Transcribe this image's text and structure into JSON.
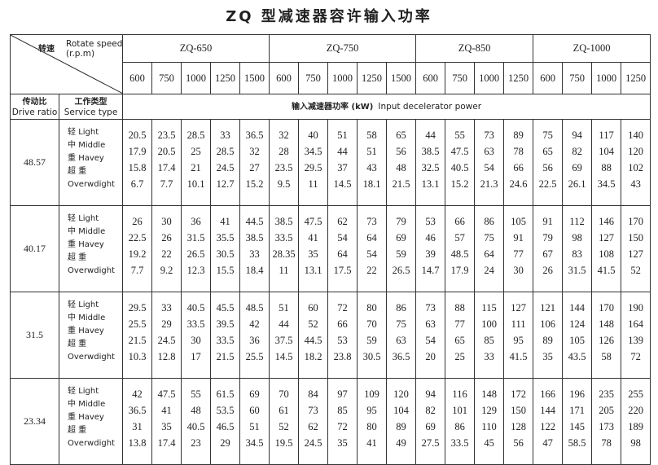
{
  "title": "ZQ 型减速器容许输入功率",
  "header": {
    "speed_label_zh": "转速",
    "speed_label_en": "Rotate speed (r.p.m)",
    "ratio_label_zh": "传动比",
    "ratio_label_en": "Drive ratio",
    "service_label_zh": "工作类型",
    "service_label_en": "Service type",
    "power_label_zh": "输入减速器功率 (kW)",
    "power_label_en": "Input decelerator power"
  },
  "groups": [
    {
      "name": "ZQ-650",
      "speeds": [
        600,
        750,
        1000,
        1250,
        1500
      ]
    },
    {
      "name": "ZQ-750",
      "speeds": [
        600,
        750,
        1000,
        1250,
        1500
      ]
    },
    {
      "name": "ZQ-850",
      "speeds": [
        600,
        750,
        1000,
        1250
      ]
    },
    {
      "name": "ZQ-1000",
      "speeds": [
        600,
        750,
        1000,
        1250
      ]
    }
  ],
  "service_types": [
    {
      "zh": "轻",
      "en": "Light"
    },
    {
      "zh": "中",
      "en": "Middle"
    },
    {
      "zh": "重",
      "en": "Havey"
    },
    {
      "zh": "超 重",
      "en": "Overwdight"
    }
  ],
  "blocks": [
    {
      "ratio": "48.57",
      "rows": [
        [
          "20.5",
          "23.5",
          "28.5",
          "33",
          "36.5",
          "32",
          "40",
          "51",
          "58",
          "65",
          "44",
          "55",
          "73",
          "89",
          "75",
          "94",
          "117",
          "140"
        ],
        [
          "17.9",
          "20.5",
          "25",
          "28.5",
          "32",
          "28",
          "34.5",
          "44",
          "51",
          "56",
          "38.5",
          "47.5",
          "63",
          "78",
          "65",
          "82",
          "104",
          "120"
        ],
        [
          "15.8",
          "17.4",
          "21",
          "24.5",
          "27",
          "23.5",
          "29.5",
          "37",
          "43",
          "48",
          "32.5",
          "40.5",
          "54",
          "66",
          "56",
          "69",
          "88",
          "102"
        ],
        [
          "6.7",
          "7.7",
          "10.1",
          "12.7",
          "15.2",
          "9.5",
          "11",
          "14.5",
          "18.1",
          "21.5",
          "13.1",
          "15.2",
          "21.3",
          "24.6",
          "22.5",
          "26.1",
          "34.5",
          "43"
        ]
      ]
    },
    {
      "ratio": "40.17",
      "rows": [
        [
          "26",
          "30",
          "36",
          "41",
          "44.5",
          "38.5",
          "47.5",
          "62",
          "73",
          "79",
          "53",
          "66",
          "86",
          "105",
          "91",
          "112",
          "146",
          "170"
        ],
        [
          "22.5",
          "26",
          "31.5",
          "35.5",
          "38.5",
          "33.5",
          "41",
          "54",
          "64",
          "69",
          "46",
          "57",
          "75",
          "91",
          "79",
          "98",
          "127",
          "150"
        ],
        [
          "19.2",
          "22",
          "26.5",
          "30.5",
          "33",
          "28.35",
          "35",
          "64",
          "54",
          "59",
          "39",
          "48.5",
          "64",
          "77",
          "67",
          "83",
          "108",
          "127"
        ],
        [
          "7.7",
          "9.2",
          "12.3",
          "15.5",
          "18.4",
          "11",
          "13.1",
          "17.5",
          "22",
          "26.5",
          "14.7",
          "17.9",
          "24",
          "30",
          "26",
          "31.5",
          "41.5",
          "52"
        ]
      ]
    },
    {
      "ratio": "31.5",
      "rows": [
        [
          "29.5",
          "33",
          "40.5",
          "45.5",
          "48.5",
          "51",
          "60",
          "72",
          "80",
          "86",
          "73",
          "88",
          "115",
          "127",
          "121",
          "144",
          "170",
          "190"
        ],
        [
          "25.5",
          "29",
          "33.5",
          "39.5",
          "42",
          "44",
          "52",
          "66",
          "70",
          "75",
          "63",
          "77",
          "100",
          "111",
          "106",
          "124",
          "148",
          "164"
        ],
        [
          "21.5",
          "24.5",
          "30",
          "33.5",
          "36",
          "37.5",
          "44.5",
          "53",
          "59",
          "63",
          "54",
          "65",
          "85",
          "95",
          "89",
          "105",
          "126",
          "139"
        ],
        [
          "10.3",
          "12.8",
          "17",
          "21.5",
          "25.5",
          "14.5",
          "18.2",
          "23.8",
          "30.5",
          "36.5",
          "20",
          "25",
          "33",
          "41.5",
          "35",
          "43.5",
          "58",
          "72"
        ]
      ]
    },
    {
      "ratio": "23.34",
      "rows": [
        [
          "42",
          "47.5",
          "55",
          "61.5",
          "69",
          "70",
          "84",
          "97",
          "109",
          "120",
          "94",
          "116",
          "148",
          "172",
          "166",
          "196",
          "235",
          "255"
        ],
        [
          "36.5",
          "41",
          "48",
          "53.5",
          "60",
          "61",
          "73",
          "85",
          "95",
          "104",
          "82",
          "101",
          "129",
          "150",
          "144",
          "171",
          "205",
          "220"
        ],
        [
          "31",
          "35",
          "40.5",
          "46.5",
          "51",
          "52",
          "62",
          "72",
          "80",
          "89",
          "69",
          "86",
          "110",
          "128",
          "122",
          "145",
          "173",
          "189"
        ],
        [
          "13.8",
          "17.4",
          "23",
          "29",
          "34.5",
          "19.5",
          "24.5",
          "35",
          "41",
          "49",
          "27.5",
          "33.5",
          "45",
          "56",
          "47",
          "58.5",
          "78",
          "98"
        ]
      ]
    }
  ]
}
